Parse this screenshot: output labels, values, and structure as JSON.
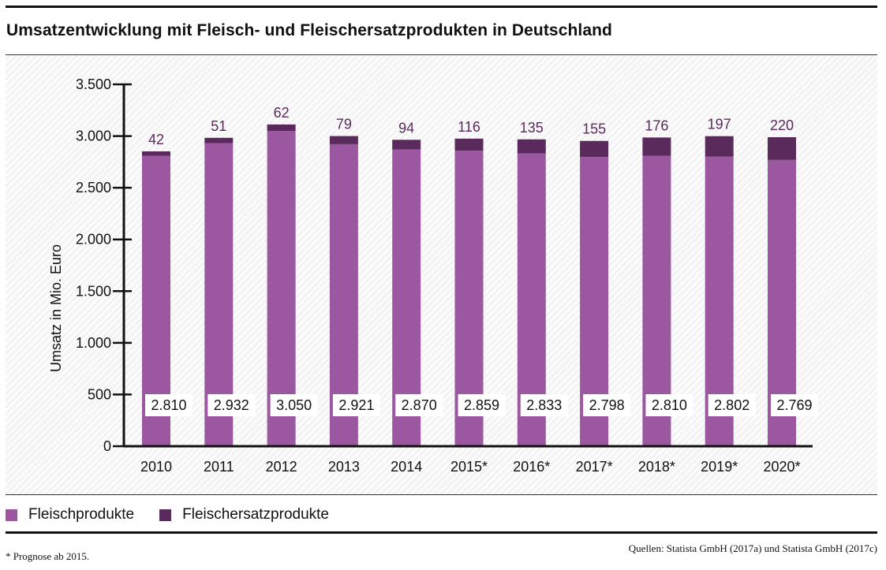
{
  "title": "Umsatzentwicklung mit Fleisch- und Fleischersatzprodukten in Deutschland",
  "footnote": "* Prognose ab 2015.",
  "sources": "Quellen: Statista GmbH (2017a) und Statista GmbH (2017c)",
  "colors": {
    "fleisch": "#9b58a0",
    "ersatz": "#5b2a5c"
  },
  "chart_data": {
    "type": "bar",
    "stacked": true,
    "categories": [
      "2010",
      "2011",
      "2012",
      "2013",
      "2014",
      "2015*",
      "2016*",
      "2017*",
      "2018*",
      "2019*",
      "2020*"
    ],
    "series": [
      {
        "name": "Fleischprodukte",
        "values": [
          2810,
          2932,
          3050,
          2921,
          2870,
          2859,
          2833,
          2798,
          2810,
          2802,
          2769
        ],
        "labels": [
          "2.810",
          "2.932",
          "3.050",
          "2.921",
          "2.870",
          "2.859",
          "2.833",
          "2.798",
          "2.810",
          "2.802",
          "2.769"
        ]
      },
      {
        "name": "Fleischersatzprodukte",
        "values": [
          42,
          51,
          62,
          79,
          94,
          116,
          135,
          155,
          176,
          197,
          220
        ],
        "labels": [
          "42",
          "51",
          "62",
          "79",
          "94",
          "116",
          "135",
          "155",
          "176",
          "197",
          "220"
        ]
      }
    ],
    "ylabel": "Umsatz in Mio. Euro",
    "ylim": [
      0,
      3500
    ],
    "yticks": [
      0,
      500,
      1000,
      1500,
      2000,
      2500,
      3000,
      3500
    ],
    "yticklabels": [
      "0",
      "500",
      "1.000",
      "1.500",
      "2.000",
      "2.500",
      "3.000",
      "3.500"
    ],
    "grid": false,
    "legend_position": "bottom-left"
  }
}
